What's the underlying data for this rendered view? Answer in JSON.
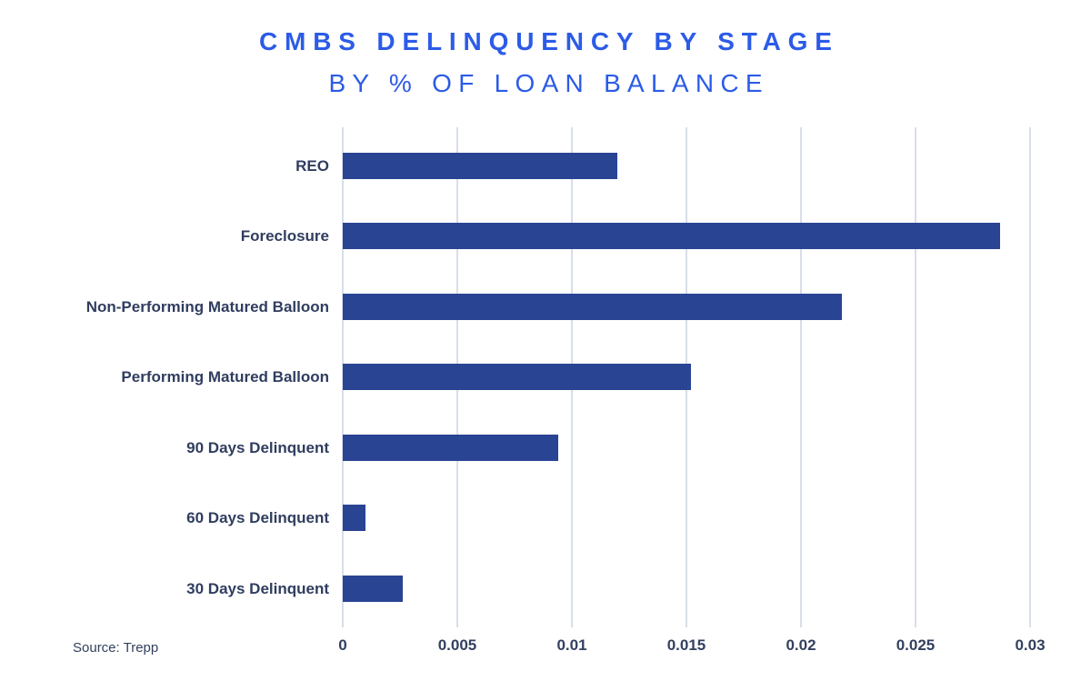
{
  "title": "CMBS DELINQUENCY BY STAGE",
  "subtitle": "BY % OF LOAN BALANCE",
  "source": "Source: Trepp",
  "colors": {
    "title_blue": "#2C5BE7",
    "bar_navy": "#2A4494",
    "label_navy": "#303D5F",
    "gridline": "#D8DEEA",
    "background": "#FFFFFF"
  },
  "chart_data": {
    "type": "bar",
    "orientation": "horizontal",
    "title": "CMBS DELINQUENCY BY STAGE",
    "subtitle": "BY % OF LOAN BALANCE",
    "xlabel": "",
    "ylabel": "",
    "categories": [
      "REO",
      "Foreclosure",
      "Non-Performing Matured Balloon",
      "Performing Matured Balloon",
      "90 Days Delinquent",
      "60 Days Delinquent",
      "30 Days Delinquent"
    ],
    "values": [
      0.012,
      0.0287,
      0.0218,
      0.0152,
      0.0094,
      0.001,
      0.0026
    ],
    "x_ticks": [
      0,
      0.005,
      0.01,
      0.015,
      0.02,
      0.025,
      0.03
    ],
    "x_tick_labels": [
      "0",
      "0.005",
      "0.01",
      "0.015",
      "0.02",
      "0.025",
      "0.03"
    ],
    "xlim": [
      0,
      0.03
    ],
    "grid": true,
    "legend": "none",
    "source": "Source: Trepp"
  }
}
